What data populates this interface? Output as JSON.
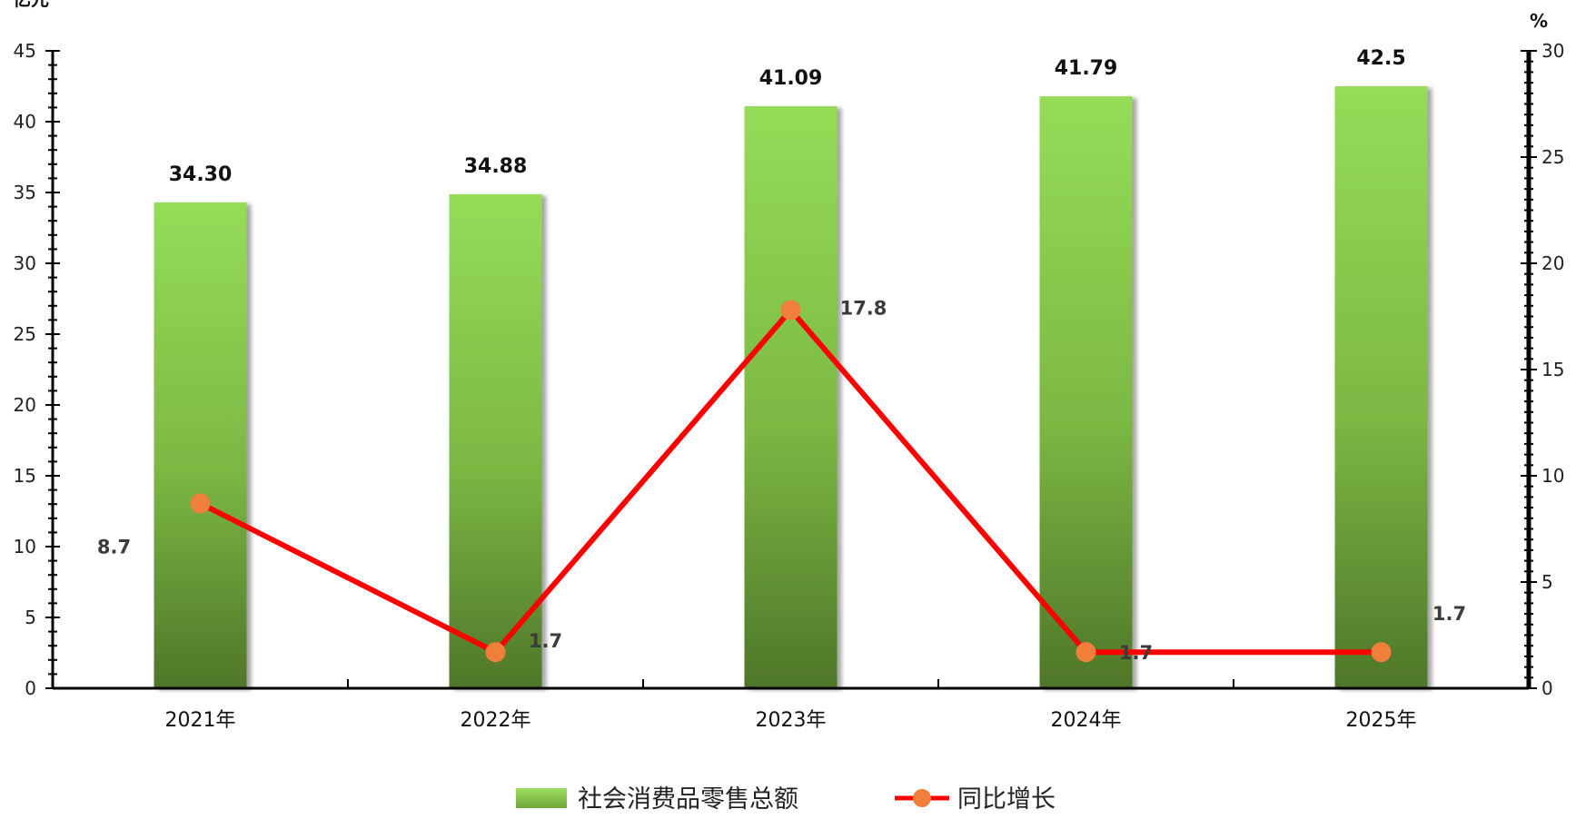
{
  "chart_data": {
    "type": "bar",
    "categories": [
      "2021年",
      "2022年",
      "2023年",
      "2024年",
      "2025年"
    ],
    "series": [
      {
        "name": "社会消费品零售总额",
        "type": "bar",
        "axis": "left",
        "values": [
          34.3,
          34.88,
          41.09,
          41.79,
          42.5
        ],
        "labels": [
          "34.30",
          "34.88",
          "41.09",
          "41.79",
          "42.5"
        ],
        "color": "#8fd14f"
      },
      {
        "name": "同比增长",
        "type": "line",
        "axis": "right",
        "values": [
          8.7,
          1.7,
          17.8,
          1.7,
          1.7
        ],
        "labels": [
          "8.7",
          "1.7",
          "17.8",
          "1.7",
          "1.7"
        ],
        "color": "#ff0000",
        "marker_color": "#ef7f3a"
      }
    ],
    "ylabel_left": "亿元",
    "ylabel_right": "%",
    "ylim_left": [
      0,
      45
    ],
    "ylim_right": [
      0,
      30
    ],
    "yticks_left": [
      "0",
      "5",
      "10",
      "15",
      "20",
      "25",
      "30",
      "35",
      "40",
      "45"
    ],
    "yticks_right": [
      "0",
      "5",
      "10",
      "15",
      "20",
      "25",
      "30"
    ],
    "grid": false,
    "legend_position": "bottom"
  }
}
